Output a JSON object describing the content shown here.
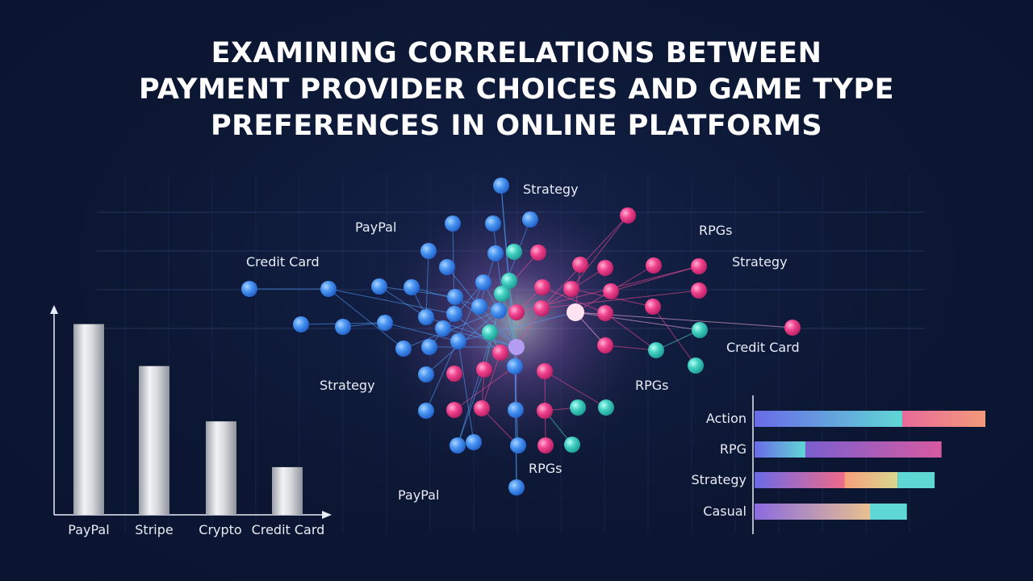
{
  "title_lines": [
    "EXAMINING CORRELATIONS BETWEEN",
    "PAYMENT PROVIDER CHOICES AND GAME TYPE",
    "PREFERENCES IN ONLINE PLATFORMS"
  ],
  "colors": {
    "background": "#0c1733",
    "blue": "#3f8df0",
    "pink": "#ef3b8c",
    "teal": "#3fd0c4",
    "grid": "#2a3a66"
  },
  "chart_data": [
    {
      "type": "bar",
      "title": "",
      "categories": [
        "PayPal",
        "Stripe",
        "Crypto",
        "Credit Card"
      ],
      "values": [
        100,
        78,
        49,
        25
      ],
      "ylim": [
        0,
        110
      ],
      "xlabel": "",
      "ylabel": "",
      "grid": false
    },
    {
      "type": "bar",
      "orientation": "horizontal",
      "stacked": true,
      "title": "",
      "categories": [
        "Action",
        "RPG",
        "Strategy",
        "Casual"
      ],
      "series": [
        {
          "color_start": "#6a6ae8",
          "color_end": "#5fd7d4",
          "values": [
            64,
            22,
            0,
            0
          ]
        },
        {
          "color_start": "#e86a9a",
          "color_end": "#f39a7a",
          "values": [
            36,
            0,
            0,
            0
          ]
        },
        {
          "color_start": "#7a5fd0",
          "color_end": "#d85aa0",
          "values": [
            0,
            59,
            0,
            0
          ]
        },
        {
          "color_start": "#6a6ae8",
          "color_end": "#f06a8a",
          "values": [
            0,
            0,
            39,
            0
          ]
        },
        {
          "color_start": "#f7a07a",
          "color_end": "#d8d890",
          "values": [
            0,
            0,
            23,
            0
          ]
        },
        {
          "color_start": "#5fd7d4",
          "color_end": "#5fd7d4",
          "values": [
            0,
            0,
            16,
            0
          ]
        },
        {
          "color_start": "#8a6ae0",
          "color_end": "#e8c090",
          "values": [
            0,
            0,
            0,
            50
          ]
        },
        {
          "color_start": "#5fd7d4",
          "color_end": "#5fd7d4",
          "values": [
            0,
            0,
            0,
            16
          ]
        }
      ],
      "xlim": [
        0,
        100
      ],
      "grid": false
    }
  ],
  "network": {
    "labels": [
      "Strategy",
      "PayPal",
      "RPGs",
      "Credit Card",
      "Strategy",
      "Credit Card",
      "Strategy",
      "RPGs",
      "RPGs",
      "PayPal"
    ]
  }
}
